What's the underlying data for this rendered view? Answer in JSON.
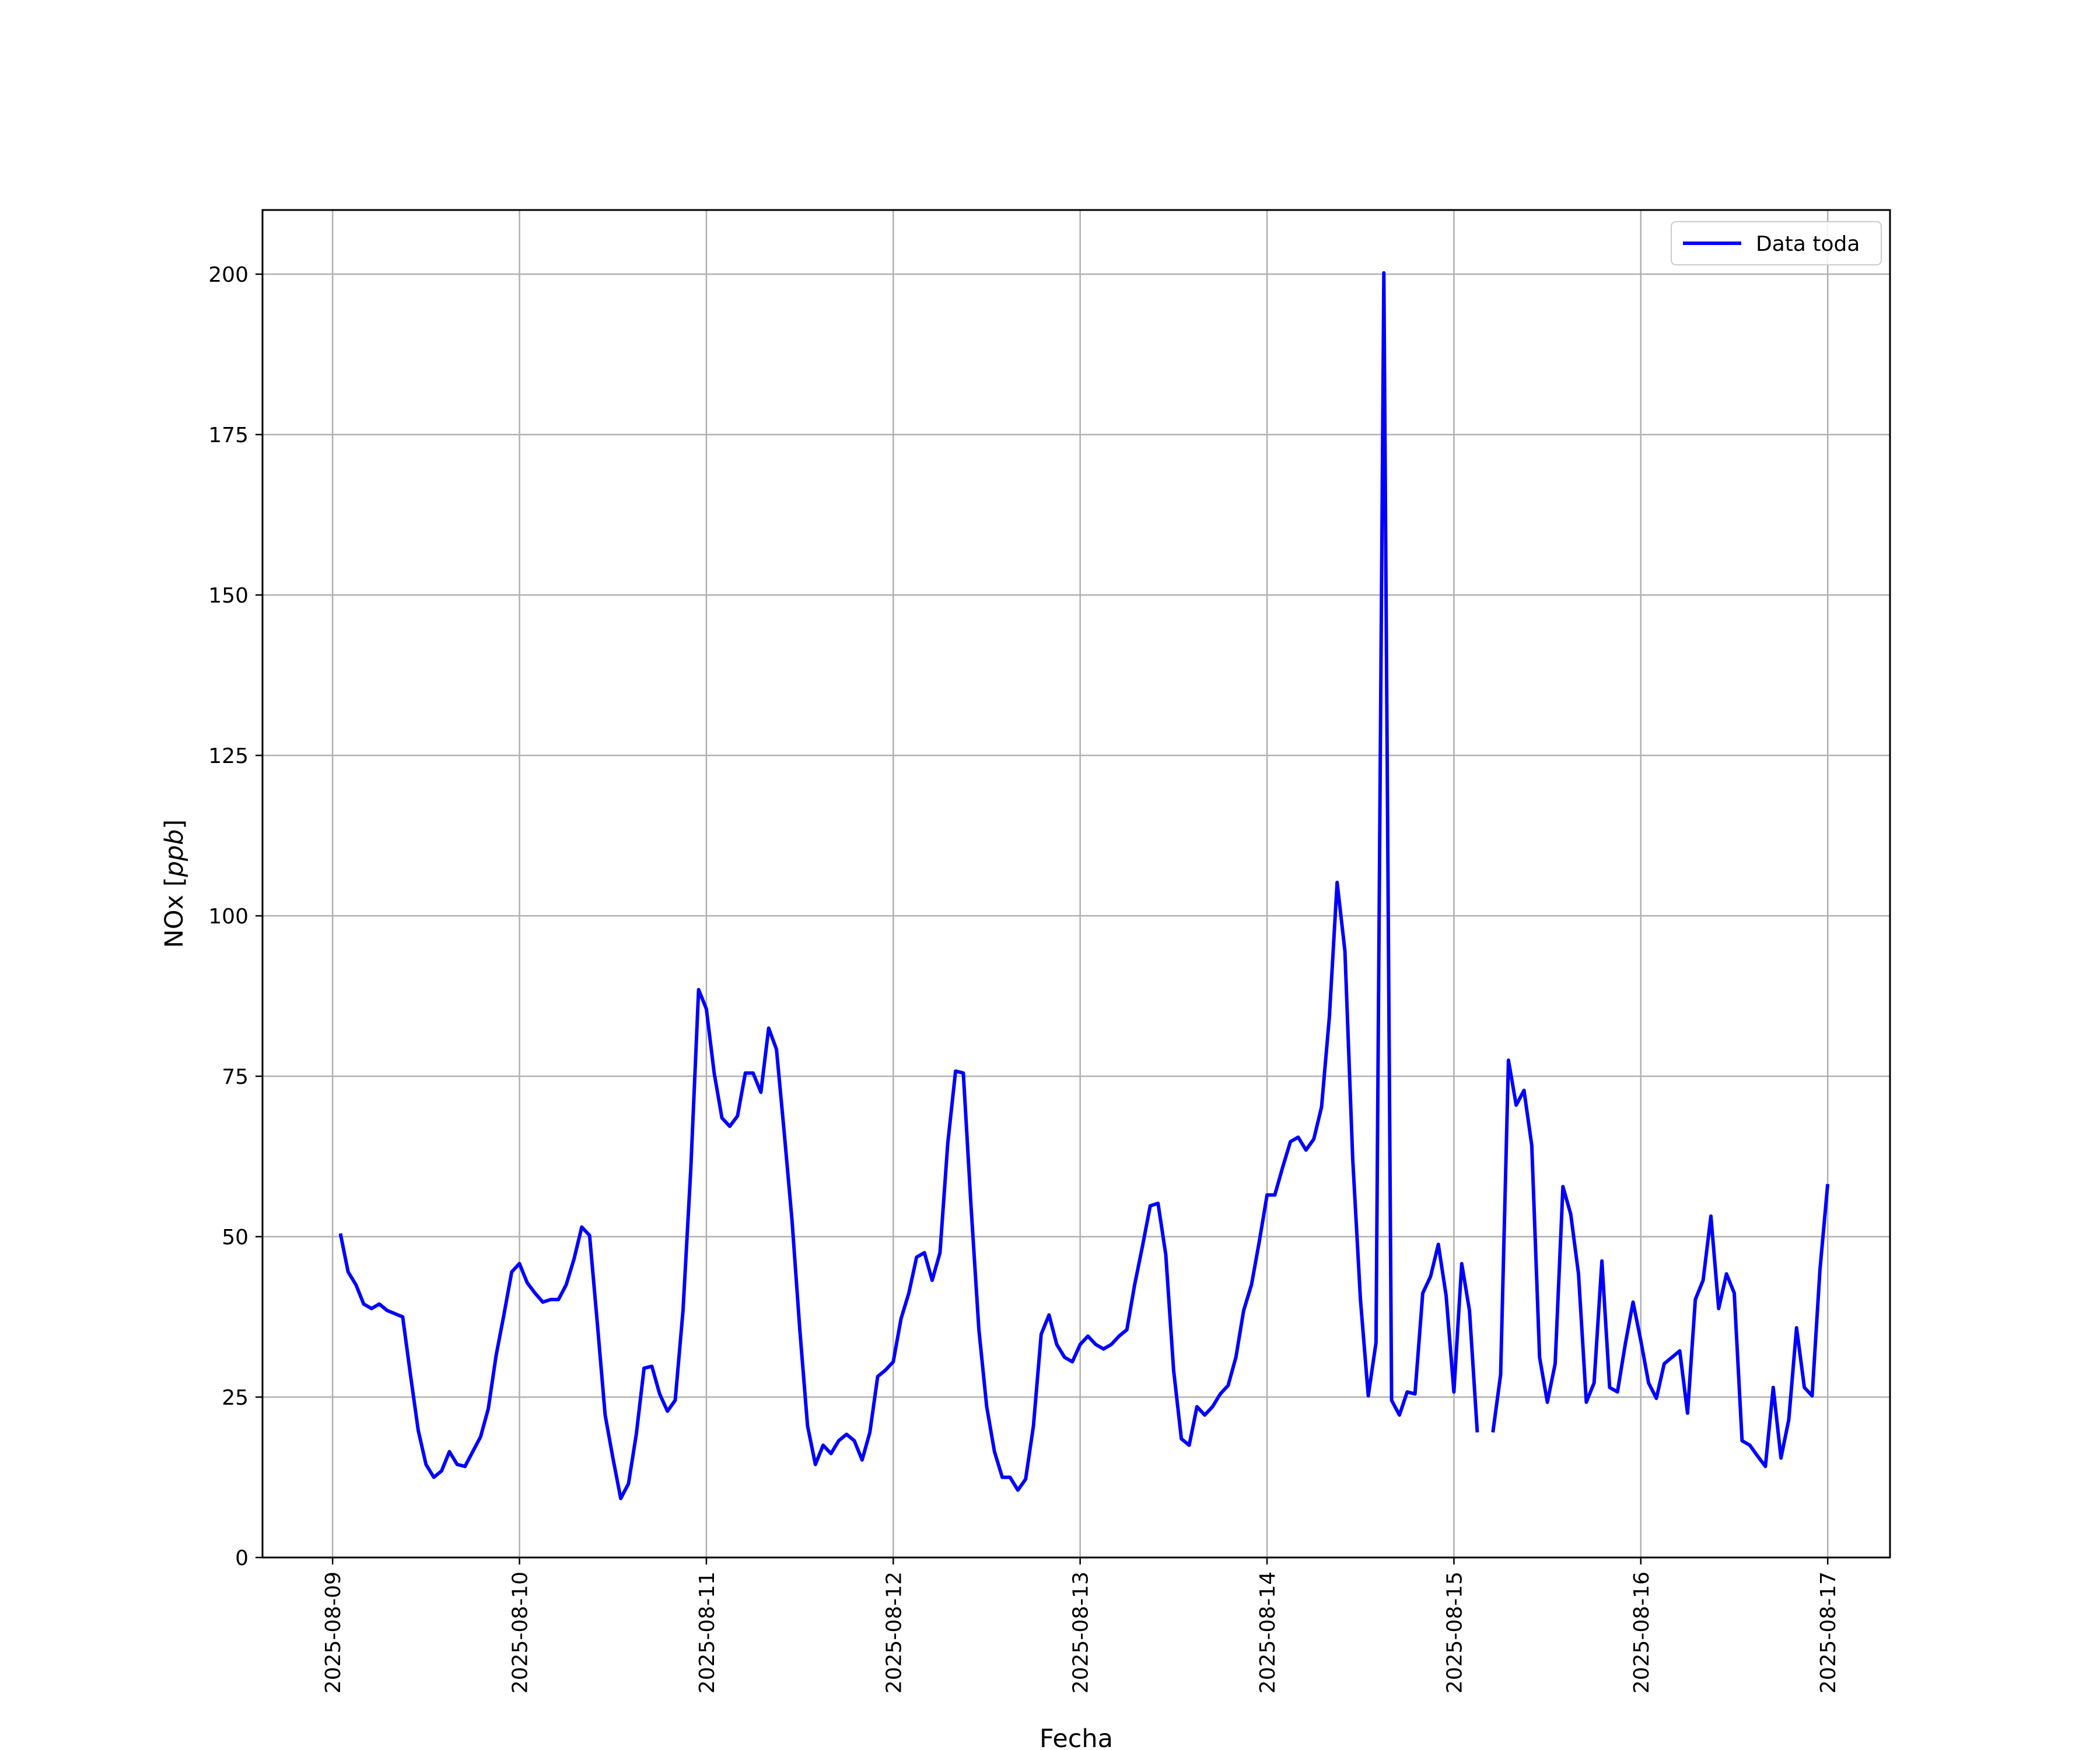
{
  "chart_data": {
    "type": "line",
    "xlabel": "Fecha",
    "ylabel": "NOx [ppb]",
    "ylabel_prefix": "NOx [",
    "ylabel_unit": "ppb",
    "ylabel_suffix": "]",
    "ylim": [
      0,
      210
    ],
    "xlim": [
      "2025-08-08T15:00",
      "2025-08-17T08:00"
    ],
    "yticks": [
      0,
      25,
      50,
      75,
      100,
      125,
      150,
      175,
      200
    ],
    "xticks": [
      "2025-08-09",
      "2025-08-10",
      "2025-08-11",
      "2025-08-12",
      "2025-08-13",
      "2025-08-14",
      "2025-08-15",
      "2025-08-16",
      "2025-08-17"
    ],
    "grid": true,
    "legend_position": "top-right",
    "series": [
      {
        "name": "Data toda",
        "color": "#0000ff",
        "x": [
          "2025-08-09T01:00",
          "2025-08-09T02:00",
          "2025-08-09T03:00",
          "2025-08-09T04:00",
          "2025-08-09T05:00",
          "2025-08-09T06:00",
          "2025-08-09T07:00",
          "2025-08-09T08:00",
          "2025-08-09T09:00",
          "2025-08-09T10:00",
          "2025-08-09T11:00",
          "2025-08-09T12:00",
          "2025-08-09T13:00",
          "2025-08-09T14:00",
          "2025-08-09T15:00",
          "2025-08-09T16:00",
          "2025-08-09T17:00",
          "2025-08-09T18:00",
          "2025-08-09T19:00",
          "2025-08-09T20:00",
          "2025-08-09T21:00",
          "2025-08-09T22:00",
          "2025-08-09T23:00",
          "2025-08-10T00:00",
          "2025-08-10T01:00",
          "2025-08-10T02:00",
          "2025-08-10T03:00",
          "2025-08-10T04:00",
          "2025-08-10T05:00",
          "2025-08-10T06:00",
          "2025-08-10T07:00",
          "2025-08-10T08:00",
          "2025-08-10T09:00",
          "2025-08-10T10:00",
          "2025-08-10T11:00",
          "2025-08-10T12:00",
          "2025-08-10T13:00",
          "2025-08-10T14:00",
          "2025-08-10T15:00",
          "2025-08-10T16:00",
          "2025-08-10T17:00",
          "2025-08-10T18:00",
          "2025-08-10T19:00",
          "2025-08-10T20:00",
          "2025-08-10T21:00",
          "2025-08-10T22:00",
          "2025-08-10T23:00",
          "2025-08-11T00:00",
          "2025-08-11T01:00",
          "2025-08-11T02:00",
          "2025-08-11T03:00",
          "2025-08-11T04:00",
          "2025-08-11T05:00",
          "2025-08-11T06:00",
          "2025-08-11T07:00",
          "2025-08-11T08:00",
          "2025-08-11T09:00",
          "2025-08-11T10:00",
          "2025-08-11T11:00",
          "2025-08-11T12:00",
          "2025-08-11T13:00",
          "2025-08-11T14:00",
          "2025-08-11T15:00",
          "2025-08-11T16:00",
          "2025-08-11T17:00",
          "2025-08-11T18:00",
          "2025-08-11T19:00",
          "2025-08-11T20:00",
          "2025-08-11T21:00",
          "2025-08-11T22:00",
          "2025-08-11T23:00",
          "2025-08-12T00:00",
          "2025-08-12T01:00",
          "2025-08-12T02:00",
          "2025-08-12T03:00",
          "2025-08-12T04:00",
          "2025-08-12T05:00",
          "2025-08-12T06:00",
          "2025-08-12T07:00",
          "2025-08-12T08:00",
          "2025-08-12T09:00",
          "2025-08-12T10:00",
          "2025-08-12T11:00",
          "2025-08-12T12:00",
          "2025-08-12T13:00",
          "2025-08-12T14:00",
          "2025-08-12T15:00",
          "2025-08-12T16:00",
          "2025-08-12T17:00",
          "2025-08-12T18:00",
          "2025-08-12T19:00",
          "2025-08-12T20:00",
          "2025-08-12T21:00",
          "2025-08-12T22:00",
          "2025-08-12T23:00",
          "2025-08-13T00:00",
          "2025-08-13T01:00",
          "2025-08-13T02:00",
          "2025-08-13T03:00",
          "2025-08-13T04:00",
          "2025-08-13T05:00",
          "2025-08-13T06:00",
          "2025-08-13T07:00",
          "2025-08-13T08:00",
          "2025-08-13T09:00",
          "2025-08-13T10:00",
          "2025-08-13T11:00",
          "2025-08-13T12:00",
          "2025-08-13T13:00",
          "2025-08-13T14:00",
          "2025-08-13T15:00",
          "2025-08-13T16:00",
          "2025-08-13T17:00",
          "2025-08-13T18:00",
          "2025-08-13T19:00",
          "2025-08-13T20:00",
          "2025-08-13T21:00",
          "2025-08-13T22:00",
          "2025-08-13T23:00",
          "2025-08-14T00:00",
          "2025-08-14T01:00",
          "2025-08-14T02:00",
          "2025-08-14T03:00",
          "2025-08-14T04:00",
          "2025-08-14T05:00",
          "2025-08-14T06:00",
          "2025-08-14T07:00",
          "2025-08-14T08:00",
          "2025-08-14T09:00",
          "2025-08-14T10:00",
          "2025-08-14T11:00",
          "2025-08-14T12:00",
          "2025-08-14T13:00",
          "2025-08-14T14:00",
          "2025-08-14T15:00",
          "2025-08-14T16:00",
          "2025-08-14T17:00",
          "2025-08-14T18:00",
          "2025-08-14T19:00",
          "2025-08-14T20:00",
          "2025-08-14T21:00",
          "2025-08-14T22:00",
          "2025-08-14T23:00",
          "2025-08-15T00:00",
          "2025-08-15T01:00",
          "2025-08-15T02:00",
          "2025-08-15T03:00",
          null,
          "2025-08-15T05:00",
          "2025-08-15T06:00",
          "2025-08-15T07:00",
          "2025-08-15T08:00",
          "2025-08-15T09:00",
          "2025-08-15T10:00",
          "2025-08-15T11:00",
          "2025-08-15T12:00",
          "2025-08-15T13:00",
          "2025-08-15T14:00",
          "2025-08-15T15:00",
          "2025-08-15T16:00",
          "2025-08-15T17:00",
          "2025-08-15T18:00",
          "2025-08-15T19:00",
          "2025-08-15T20:00",
          "2025-08-15T21:00",
          "2025-08-15T22:00",
          "2025-08-15T23:00",
          "2025-08-16T00:00",
          "2025-08-16T01:00",
          "2025-08-16T02:00",
          "2025-08-16T03:00",
          "2025-08-16T04:00",
          "2025-08-16T05:00",
          "2025-08-16T06:00",
          "2025-08-16T07:00",
          "2025-08-16T08:00",
          "2025-08-16T09:00",
          "2025-08-16T10:00",
          "2025-08-16T11:00",
          "2025-08-16T12:00",
          "2025-08-16T13:00",
          "2025-08-16T14:00",
          "2025-08-16T15:00",
          "2025-08-16T16:00",
          "2025-08-16T17:00",
          "2025-08-16T18:00",
          "2025-08-16T19:00",
          "2025-08-16T20:00",
          "2025-08-16T21:00",
          "2025-08-16T22:00",
          "2025-08-16T23:00",
          "2025-08-17T00:00"
        ],
        "values": [
          50.5,
          44.5,
          42.5,
          39.5,
          38.8,
          39.5,
          38.5,
          38,
          37.5,
          28.5,
          19.8,
          14.5,
          12.5,
          13.5,
          16.5,
          14.5,
          14.2,
          16.5,
          18.8,
          23.2,
          31.5,
          37.8,
          44.5,
          45.8,
          42.8,
          41.2,
          39.8,
          40.2,
          40.2,
          42.5,
          46.5,
          51.5,
          50.2,
          36.5,
          22.2,
          15.5,
          9.2,
          11.5,
          19.2,
          29.5,
          29.8,
          25.5,
          22.8,
          24.5,
          38.5,
          60.5,
          88.5,
          85.5,
          75.5,
          68.5,
          67.2,
          68.8,
          75.5,
          75.5,
          72.5,
          82.5,
          79.2,
          66.2,
          52.5,
          35.5,
          20.5,
          14.5,
          17.5,
          16.2,
          18.2,
          19.2,
          18.2,
          15.2,
          19.5,
          28.2,
          29.2,
          30.5,
          37.2,
          41.2,
          46.8,
          47.5,
          43.2,
          47.5,
          64.5,
          75.8,
          75.5,
          54.5,
          35.5,
          23.5,
          16.5,
          12.5,
          12.5,
          10.5,
          12.2,
          20.5,
          34.8,
          37.8,
          33.2,
          31.2,
          30.5,
          33.2,
          34.5,
          33.2,
          32.5,
          33.2,
          34.5,
          35.5,
          42.5,
          48.5,
          54.8,
          55.2,
          47.2,
          29.2,
          18.5,
          17.5,
          23.5,
          22.2,
          23.5,
          25.5,
          26.8,
          31.2,
          38.5,
          42.5,
          49.2,
          56.5,
          56.5,
          60.8,
          64.8,
          65.5,
          63.5,
          65.2,
          70.2,
          84.2,
          105.2,
          94.5,
          62.2,
          40.2,
          25.2,
          33.5,
          200.2,
          24.5,
          22.2,
          25.8,
          25.5,
          41.2,
          43.8,
          48.8,
          40.8,
          25.8,
          45.8,
          38.5,
          19.5,
          null,
          19.5,
          28.5,
          77.5,
          70.5,
          72.8,
          64.2,
          31.2,
          24.2,
          30.2,
          57.8,
          53.5,
          44.2,
          24.2,
          27.2,
          46.2,
          26.5,
          25.8,
          33.2,
          39.8,
          33.8,
          27.2,
          24.8,
          30.2,
          31.2,
          32.2,
          22.5,
          40.2,
          43.2,
          53.2,
          38.8,
          44.2,
          41.2,
          18.2,
          17.5,
          15.8,
          14.2,
          26.5,
          15.5,
          21.5,
          35.8,
          26.5,
          25.2,
          44.8,
          58.2
        ]
      }
    ]
  }
}
